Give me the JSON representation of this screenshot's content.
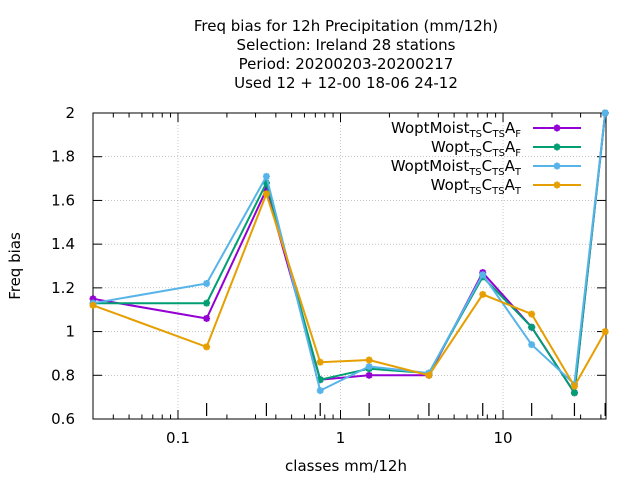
{
  "chart_data": {
    "type": "line",
    "title_lines": [
      "Freq bias  for 12h Precipitation (mm/12h)",
      "Selection: Ireland      28 stations",
      "Period: 20200203-20200217",
      "Used  12 + 12-00 18-06 24-12"
    ],
    "xlabel": "classes mm/12h",
    "ylabel": "Freq bias",
    "x_scale": "log",
    "xlim": [
      0.03,
      43
    ],
    "ylim": [
      0.6,
      2.0
    ],
    "x_ticks": [
      0.1,
      1,
      10
    ],
    "x_tick_labels": [
      "0.1",
      "1",
      "10"
    ],
    "y_ticks": [
      0.6,
      0.8,
      1.0,
      1.2,
      1.4,
      1.6,
      1.8,
      2.0
    ],
    "y_tick_labels": [
      "0.6",
      "0.8",
      "1",
      "1.2",
      "1.4",
      "1.6",
      "1.8",
      "2"
    ],
    "grid": true,
    "legend_position": "top-right",
    "x": [
      0.03,
      0.15,
      0.35,
      0.75,
      1.5,
      3.5,
      7.5,
      15,
      27.5,
      42.5
    ],
    "series": [
      {
        "legend": {
          "base": "WoptMoist",
          "parts": [
            [
              "TS",
              "sub"
            ],
            [
              "C",
              "base"
            ],
            [
              "TS",
              "sub"
            ],
            [
              "A",
              "base"
            ],
            [
              "F",
              "sub"
            ]
          ]
        },
        "color": "#9400d3",
        "values": [
          1.15,
          1.06,
          1.65,
          0.78,
          0.8,
          0.8,
          1.27,
          1.02,
          0.72,
          2.0
        ]
      },
      {
        "legend": {
          "base": "Wopt",
          "parts": [
            [
              "TS",
              "sub"
            ],
            [
              "C",
              "base"
            ],
            [
              "TS",
              "sub"
            ],
            [
              "A",
              "base"
            ],
            [
              "F",
              "sub"
            ]
          ]
        },
        "color": "#009e73",
        "values": [
          1.13,
          1.13,
          1.68,
          0.78,
          0.83,
          0.81,
          1.25,
          1.02,
          0.72,
          2.0
        ]
      },
      {
        "legend": {
          "base": "WoptMoist",
          "parts": [
            [
              "TS",
              "sub"
            ],
            [
              "C",
              "base"
            ],
            [
              "TS",
              "sub"
            ],
            [
              "A",
              "base"
            ],
            [
              "T",
              "sub"
            ]
          ]
        },
        "color": "#56b4e9",
        "values": [
          1.13,
          1.22,
          1.71,
          0.73,
          0.84,
          0.81,
          1.26,
          0.94,
          0.76,
          2.0
        ]
      },
      {
        "legend": {
          "base": "Wopt",
          "parts": [
            [
              "TS",
              "sub"
            ],
            [
              "C",
              "base"
            ],
            [
              "TS",
              "sub"
            ],
            [
              "A",
              "base"
            ],
            [
              "T",
              "sub"
            ]
          ]
        },
        "color": "#e69f00",
        "values": [
          1.12,
          0.93,
          1.63,
          0.86,
          0.87,
          0.8,
          1.17,
          1.08,
          0.75,
          1.0
        ]
      }
    ]
  }
}
